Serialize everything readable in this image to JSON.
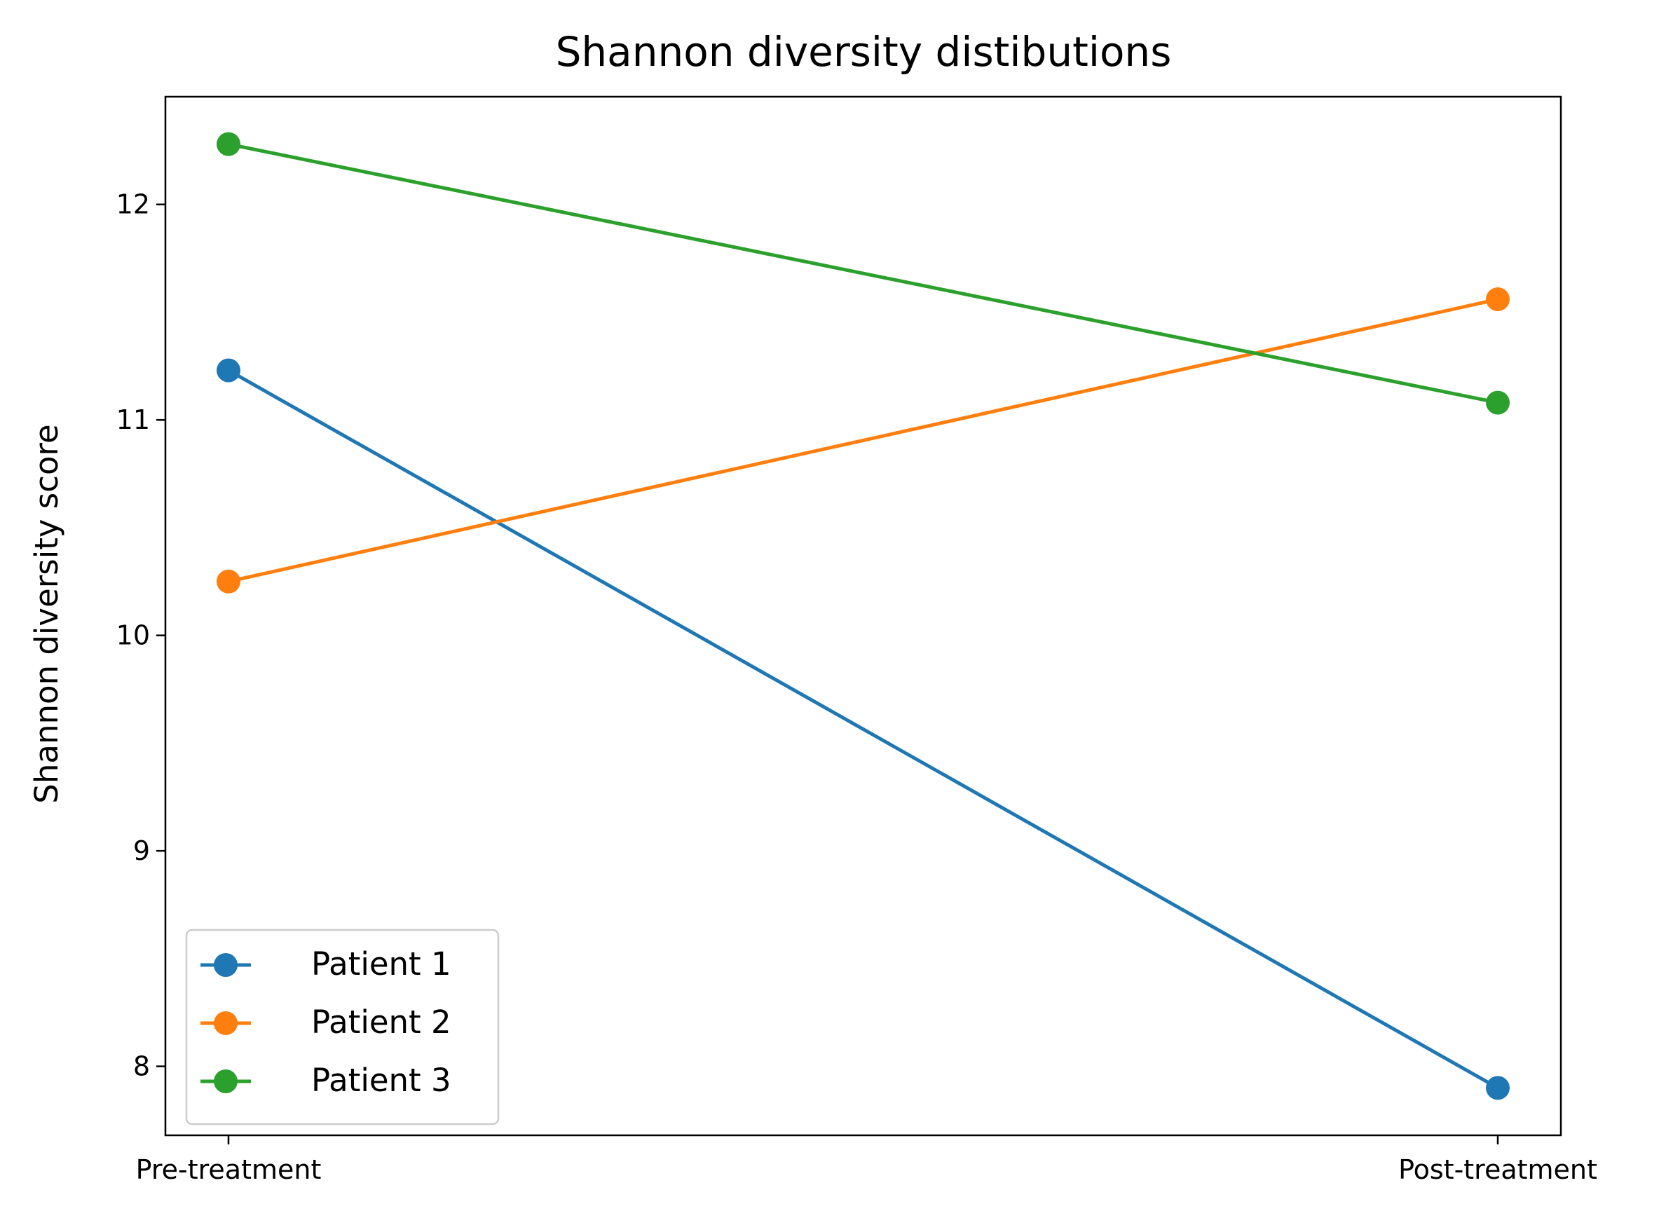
{
  "chart_data": {
    "type": "line",
    "title": "Shannon diversity distibutions",
    "xlabel": "",
    "ylabel": "Shannon diversity score",
    "categories": [
      "Pre-treatment",
      "Post-treatment"
    ],
    "ylim": [
      7.68,
      12.5
    ],
    "yticks": [
      8,
      9,
      10,
      11,
      12
    ],
    "grid": false,
    "legend_position": "lower-left",
    "marker": "circle",
    "series": [
      {
        "name": "Patient 1",
        "color": "#1f77b4",
        "values": [
          11.23,
          7.9
        ]
      },
      {
        "name": "Patient 2",
        "color": "#ff7f0e",
        "values": [
          10.25,
          11.56
        ]
      },
      {
        "name": "Patient 3",
        "color": "#2ca02c",
        "values": [
          12.28,
          11.08
        ]
      }
    ]
  }
}
